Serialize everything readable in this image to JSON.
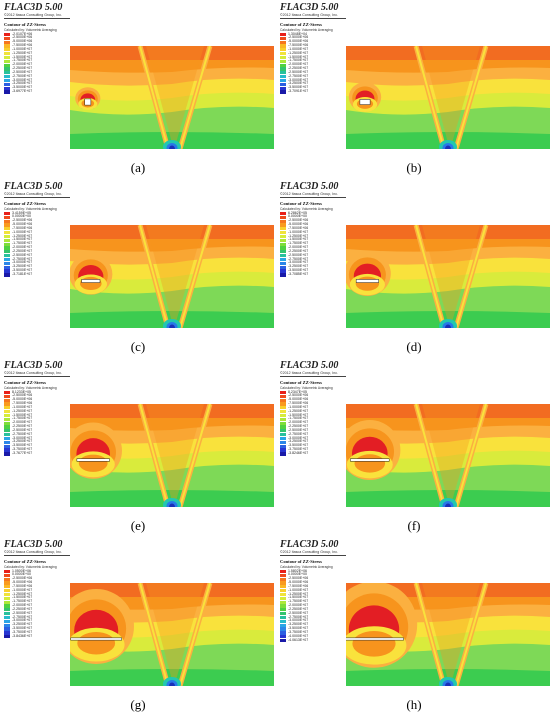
{
  "panels": [
    {
      "id": "a",
      "caption": "(a)",
      "app": "FLAC3D 5.00",
      "copyright": "©2012 Itasca Consulting Group, Inc.",
      "contour": "Contour of ZZ-Stress",
      "calc": "Calculated by: Volumetric Averaging",
      "legend": [
        "-2.0107E+06",
        "-2.5000E+06",
        "-5.0000E+06",
        "-7.5000E+06",
        "-1.0000E+07",
        "-1.2500E+07",
        "-1.5000E+07",
        "-1.7500E+07",
        "-2.0000E+07",
        "-2.2500E+07",
        "-2.5000E+07",
        "-2.7500E+07",
        "-3.0000E+07",
        "-3.2500E+07",
        "-3.5000E+07",
        "-3.6977E+07"
      ],
      "opening_width": 0.03,
      "opening_height": 0.06,
      "rel_zone": 0.15
    },
    {
      "id": "b",
      "caption": "(b)",
      "app": "FLAC3D 5.00",
      "copyright": "©2012 Itasca Consulting Group, Inc.",
      "contour": "Contour of ZZ-Stress",
      "calc": "Calculated by: Volumetric Averaging",
      "legend": [
        "1.3048E+04",
        "-2.5000E+06",
        "-5.0000E+06",
        "-7.5000E+06",
        "-1.0000E+07",
        "-1.2500E+07",
        "-1.5000E+07",
        "-1.7500E+07",
        "-2.0000E+07",
        "-2.2500E+07",
        "-2.5000E+07",
        "-2.7500E+07",
        "-3.0000E+07",
        "-3.2500E+07",
        "-3.5000E+07",
        "-3.7091E+07"
      ],
      "opening_width": 0.05,
      "opening_height": 0.05,
      "rel_zone": 0.25
    },
    {
      "id": "c",
      "caption": "(c)",
      "app": "FLAC3D 5.00",
      "copyright": "©2012 Itasca Consulting Group, Inc.",
      "contour": "Contour of ZZ-Stress",
      "calc": "Calculated by: Volumetric Averaging",
      "legend": [
        "3.4159E+05",
        "0.0000E+00",
        "-2.5000E+06",
        "-5.0000E+06",
        "-7.5000E+06",
        "-1.0000E+07",
        "-1.2500E+07",
        "-1.5000E+07",
        "-1.7500E+07",
        "-2.0000E+07",
        "-2.2500E+07",
        "-2.5000E+07",
        "-2.7500E+07",
        "-3.0000E+07",
        "-3.2500E+07",
        "-3.5000E+07",
        "-3.7181E+07"
      ],
      "opening_width": 0.09,
      "opening_height": 0.03,
      "rel_zone": 0.4
    },
    {
      "id": "d",
      "caption": "(d)",
      "app": "FLAC3D 5.00",
      "copyright": "©2012 Itasca Consulting Group, Inc.",
      "contour": "Contour of ZZ-Stress",
      "calc": "Calculated by: Volumetric Averaging",
      "legend": [
        "6.2862E+05",
        "0.0000E+00",
        "-2.5000E+06",
        "-5.0000E+06",
        "-7.5000E+06",
        "-1.0000E+07",
        "-1.2500E+07",
        "-1.5000E+07",
        "-1.7500E+07",
        "-2.0000E+07",
        "-2.2500E+07",
        "-2.5000E+07",
        "-2.7500E+07",
        "-3.0000E+07",
        "-3.2500E+07",
        "-3.5000E+07",
        "-3.7085E+07"
      ],
      "opening_width": 0.11,
      "opening_height": 0.03,
      "rel_zone": 0.45
    },
    {
      "id": "e",
      "caption": "(e)",
      "app": "FLAC3D 5.00",
      "copyright": "©2012 Itasca Consulting Group, Inc.",
      "contour": "Contour of ZZ-Stress",
      "calc": "Calculated by: Volumetric Averaging",
      "legend": [
        "8.1233E+05",
        "-2.5000E+06",
        "-5.0000E+06",
        "-7.5000E+06",
        "-1.0000E+07",
        "-1.2500E+07",
        "-1.5000E+07",
        "-1.7500E+07",
        "-2.0000E+07",
        "-2.2500E+07",
        "-2.5000E+07",
        "-2.7500E+07",
        "-3.0000E+07",
        "-3.2500E+07",
        "-3.5000E+07",
        "-3.7500E+07",
        "-3.7677E+07"
      ],
      "opening_width": 0.16,
      "opening_height": 0.025,
      "rel_zone": 0.6
    },
    {
      "id": "f",
      "caption": "(f)",
      "app": "FLAC3D 5.00",
      "copyright": "©2012 Itasca Consulting Group, Inc.",
      "contour": "Contour of ZZ-Stress",
      "calc": "Calculated by: Volumetric Averaging",
      "legend": [
        "8.2347E+05",
        "-2.5000E+06",
        "-5.0000E+06",
        "-7.5000E+06",
        "-1.0000E+07",
        "-1.2500E+07",
        "-1.5000E+07",
        "-1.7500E+07",
        "-2.0000E+07",
        "-2.2500E+07",
        "-2.5000E+07",
        "-2.7500E+07",
        "-3.0000E+07",
        "-3.2500E+07",
        "-3.5000E+07",
        "-3.7500E+07",
        "-3.8246E+07"
      ],
      "opening_width": 0.19,
      "opening_height": 0.025,
      "rel_zone": 0.65
    },
    {
      "id": "g",
      "caption": "(g)",
      "app": "FLAC3D 5.00",
      "copyright": "©2012 Itasca Consulting Group, Inc.",
      "contour": "Contour of ZZ-Stress",
      "calc": "Calculated by: Volumetric Averaging",
      "legend": [
        "1.0500E+06",
        "0.0000E+00",
        "-2.5000E+06",
        "-5.0000E+06",
        "-7.5000E+06",
        "-1.0000E+07",
        "-1.2500E+07",
        "-1.5000E+07",
        "-1.7500E+07",
        "-2.0000E+07",
        "-2.2500E+07",
        "-2.5000E+07",
        "-2.7500E+07",
        "-3.0000E+07",
        "-3.2500E+07",
        "-3.5000E+07",
        "-3.7500E+07",
        "-3.8436E+07"
      ],
      "opening_width": 0.25,
      "opening_height": 0.022,
      "rel_zone": 0.85
    },
    {
      "id": "h",
      "caption": "(h)",
      "app": "FLAC3D 5.00",
      "copyright": "©2012 Itasca Consulting Group, Inc.",
      "contour": "Contour of ZZ-Stress",
      "calc": "Calculated by: Volumetric Averaging",
      "legend": [
        "1.5802E+06",
        "0.0000E+00",
        "-2.5000E+06",
        "-5.0000E+06",
        "-7.5000E+06",
        "-1.0000E+07",
        "-1.2500E+07",
        "-1.5000E+07",
        "-1.7500E+07",
        "-2.0000E+07",
        "-2.2500E+07",
        "-2.5000E+07",
        "-2.7500E+07",
        "-3.0000E+07",
        "-3.2500E+07",
        "-3.5000E+07",
        "-3.7500E+07",
        "-4.0000E+07",
        "-4.0613E+07"
      ],
      "opening_width": 0.29,
      "opening_height": 0.022,
      "rel_zone": 1.0
    }
  ],
  "legend_colors": [
    "#e8201a",
    "#ef4a1d",
    "#f5761f",
    "#f99a1f",
    "#fbb824",
    "#f9d12c",
    "#f0e33a",
    "#d6ec3a",
    "#aee83a",
    "#7ddd3a",
    "#4fd141",
    "#33c46e",
    "#28c19d",
    "#27bccb",
    "#2aa6e6",
    "#2c86e8",
    "#2b5fe2",
    "#2735d2",
    "#1a1aa8"
  ],
  "contour_colors": {
    "surface": "#f26c21",
    "orange": "#f7941d",
    "light_orange": "#fbb040",
    "yellow": "#f9e23c",
    "yellow_green": "#d9eb3c",
    "green": "#7ed957",
    "bright_green": "#3ccc50",
    "teal": "#22c7b0",
    "blue": "#2878e8",
    "deep_blue": "#1a2fb8",
    "red": "#e31e24",
    "white": "#ffffff"
  }
}
